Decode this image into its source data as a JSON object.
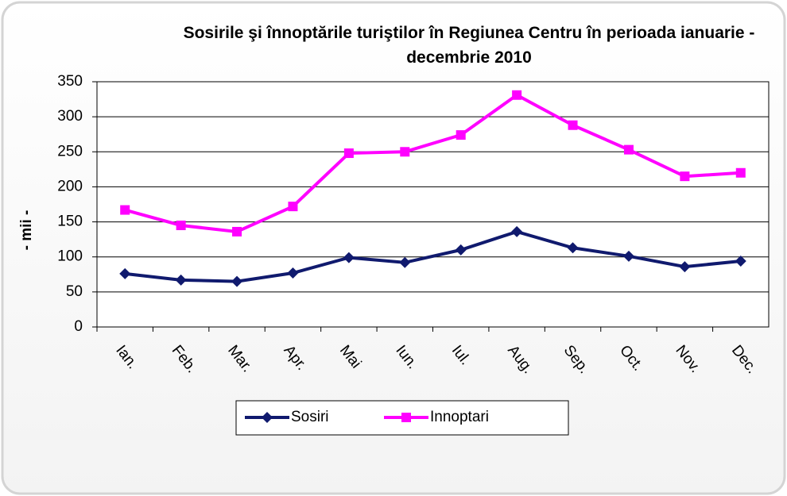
{
  "chart_data": {
    "type": "line",
    "title": "Sosirile şi înnoptările turiştilor în Regiunea Centru în perioada ianuarie - decembrie 2010",
    "y_label": "- mii -",
    "categories": [
      "Ian.",
      "Feb.",
      "Mar.",
      "Apr.",
      "Mai",
      "Iun.",
      "Iul.",
      "Aug.",
      "Sep.",
      "Oct.",
      "Nov.",
      "Dec."
    ],
    "series": [
      {
        "name": "Sosiri",
        "color": "#101a6e",
        "marker": "diamond",
        "values": [
          76,
          67,
          65,
          77,
          99,
          92,
          110,
          136,
          113,
          101,
          86,
          94
        ]
      },
      {
        "name": "Innoptari",
        "color": "#ff00ff",
        "marker": "square",
        "values": [
          167,
          145,
          136,
          172,
          248,
          250,
          274,
          331,
          288,
          253,
          215,
          220
        ]
      }
    ],
    "ylim": [
      0,
      350
    ],
    "yticks": [
      0,
      50,
      100,
      150,
      200,
      250,
      300,
      350
    ],
    "grid": true,
    "legend": "bottom"
  }
}
